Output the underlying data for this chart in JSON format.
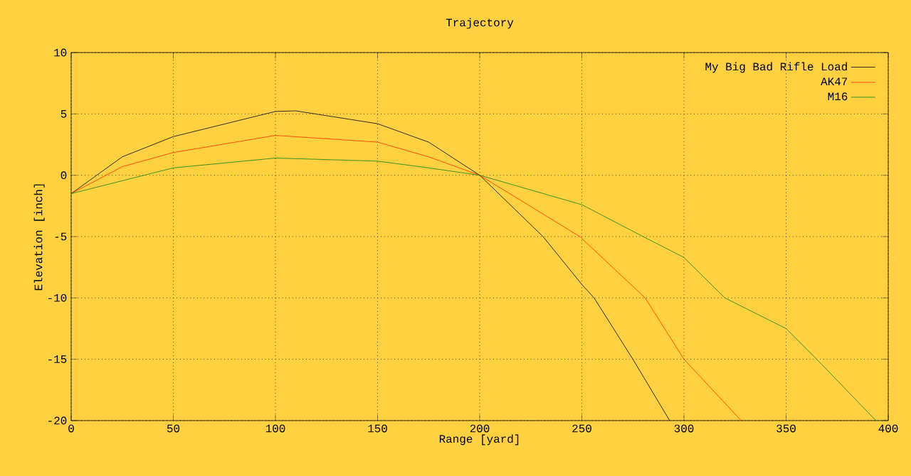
{
  "chart_data": {
    "type": "line",
    "title": "Trajectory",
    "xlabel": "Range [yard]",
    "ylabel": "Elevation [inch]",
    "xlim": [
      0,
      400
    ],
    "ylim": [
      -20,
      10
    ],
    "xticks": [
      0,
      50,
      100,
      150,
      200,
      250,
      300,
      350,
      400
    ],
    "yticks": [
      -20,
      -15,
      -10,
      -5,
      0,
      5,
      10
    ],
    "grid": true,
    "legend": "top right",
    "marker": "none",
    "line_style": "solid",
    "series": [
      {
        "name": "My Big Bad Rifle Load",
        "color": "#000000",
        "x": [
          0,
          25,
          50,
          100,
          110,
          150,
          175,
          200,
          231,
          250,
          256,
          275,
          293
        ],
        "values": [
          -1.5,
          1.5,
          3.15,
          5.2,
          5.25,
          4.2,
          2.7,
          0,
          -5,
          -8.9,
          -10,
          -15,
          -20
        ]
      },
      {
        "name": "AK47",
        "color": "#ff3000",
        "x": [
          0,
          25,
          50,
          100,
          150,
          175,
          200,
          249,
          281,
          300,
          328
        ],
        "values": [
          -1.5,
          0.7,
          1.85,
          3.25,
          2.7,
          1.5,
          0,
          -5,
          -10,
          -15,
          -20
        ]
      },
      {
        "name": "M16",
        "color": "#108010",
        "x": [
          0,
          25,
          50,
          100,
          150,
          175,
          200,
          250,
          280,
          300,
          320,
          350,
          365,
          394
        ],
        "values": [
          -1.5,
          -0.45,
          0.6,
          1.4,
          1.15,
          0.6,
          0,
          -2.4,
          -5,
          -6.7,
          -10,
          -12.5,
          -15,
          -20
        ]
      }
    ]
  }
}
